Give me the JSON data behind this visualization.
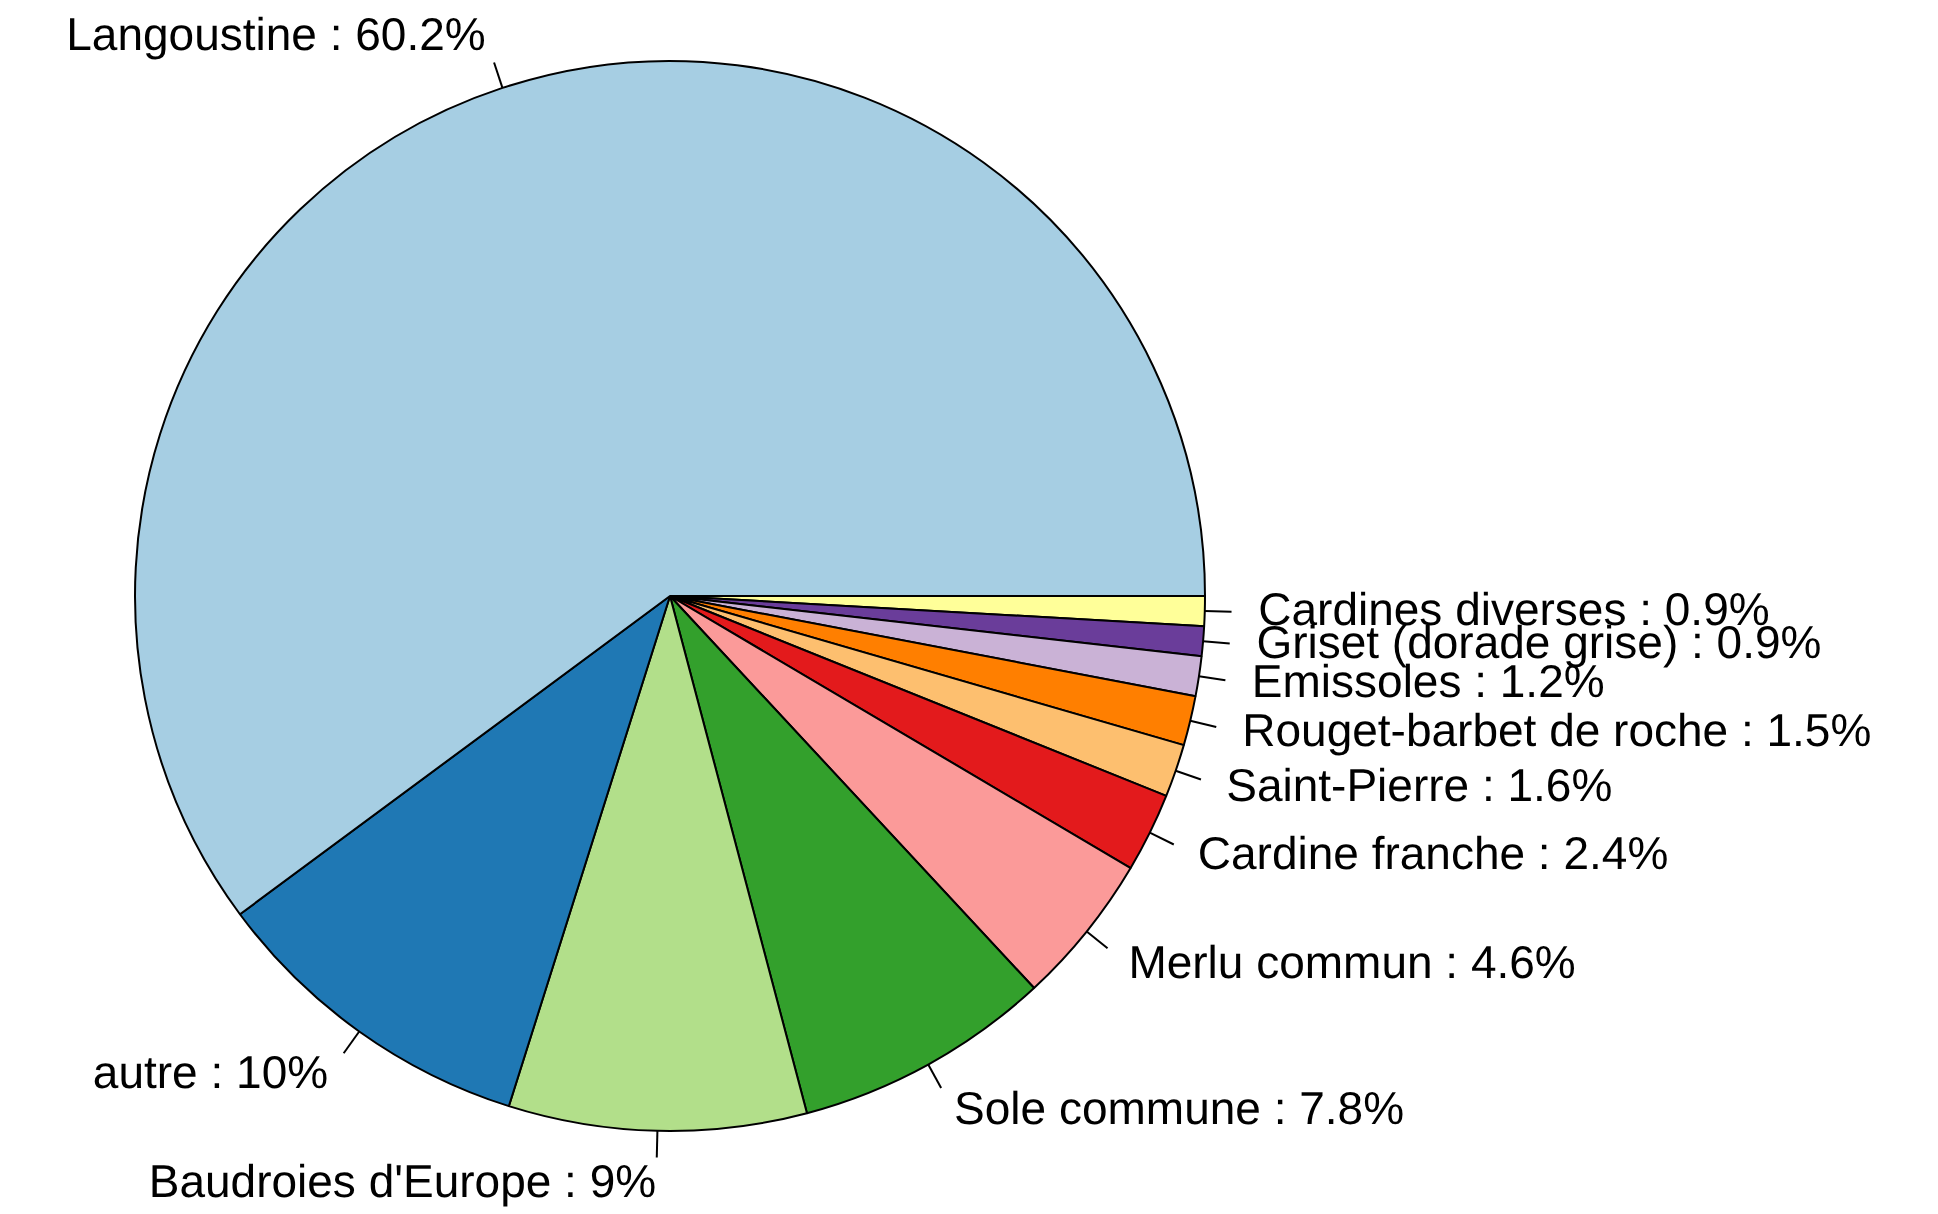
{
  "chart_data": {
    "type": "pie",
    "categories": [
      "Langoustine : 60.2%",
      "autre : 10%",
      "Baudroies d'Europe : 9%",
      "Sole commune : 7.8%",
      "Merlu commun : 4.6%",
      "Cardine franche : 2.4%",
      "Saint-Pierre : 1.6%",
      "Rouget-barbet de roche : 1.5%",
      "Emissoles : 1.2%",
      "Griset (dorade grise) : 0.9%",
      "Cardines diverses : 0.9%"
    ],
    "values": [
      60.2,
      10,
      9,
      7.8,
      4.6,
      2.4,
      1.6,
      1.5,
      1.2,
      0.9,
      0.9
    ],
    "colors": [
      "#a6cee3",
      "#1f78b4",
      "#b2df8a",
      "#33a02c",
      "#fb9a99",
      "#e31a1c",
      "#fdbf6f",
      "#ff7f00",
      "#cab2d6",
      "#6a3d9a",
      "#ffff99"
    ],
    "legend": false
  }
}
